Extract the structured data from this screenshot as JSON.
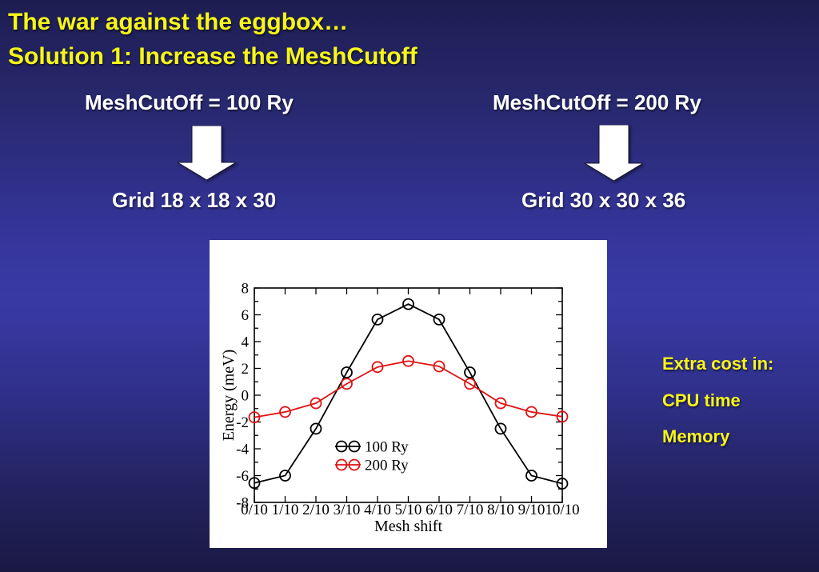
{
  "title": {
    "line1": "The war against the eggbox…",
    "line2": "Solution 1: Increase the MeshCutoff"
  },
  "columns": {
    "left": {
      "meshcutoff": "MeshCutOff = 100 Ry",
      "grid": "Grid 18 x 18 x 30"
    },
    "right": {
      "meshcutoff": "MeshCutOff = 200 Ry",
      "grid": "Grid 30 x 30 x 36"
    }
  },
  "extra_cost": {
    "line1": "Extra cost in:",
    "line2": "CPU time",
    "line3": "Memory"
  },
  "colors": {
    "background_top": "#1d1d52",
    "background_mid": "#3a3aa6",
    "background_bottom": "#1a1944",
    "title_yellow": "#f6f618",
    "body_white": "#ffffff",
    "series_100ry": "#000000",
    "series_200ry": "#e01212"
  },
  "chart_data": {
    "type": "line",
    "title": "",
    "xlabel": "Mesh shift",
    "ylabel": "Energy (meV)",
    "x_categories": [
      "0/10",
      "1/10",
      "2/10",
      "3/10",
      "4/10",
      "5/10",
      "6/10",
      "7/10",
      "8/10",
      "9/10",
      "10/10"
    ],
    "ylim": [
      -8,
      8
    ],
    "ytick_step": 2,
    "yminor_step": 1,
    "grid": false,
    "marker": "open-circle",
    "legend_position": "inside-center-left",
    "series": [
      {
        "name": "100 Ry",
        "color": "#000000",
        "values": [
          -6.55,
          -6.0,
          -2.5,
          1.7,
          5.65,
          6.8,
          5.65,
          1.7,
          -2.5,
          -6.0,
          -6.6
        ]
      },
      {
        "name": "200 Ry",
        "color": "#e01212",
        "values": [
          -1.65,
          -1.25,
          -0.6,
          0.85,
          2.1,
          2.55,
          2.15,
          0.85,
          -0.6,
          -1.25,
          -1.6
        ]
      }
    ]
  }
}
